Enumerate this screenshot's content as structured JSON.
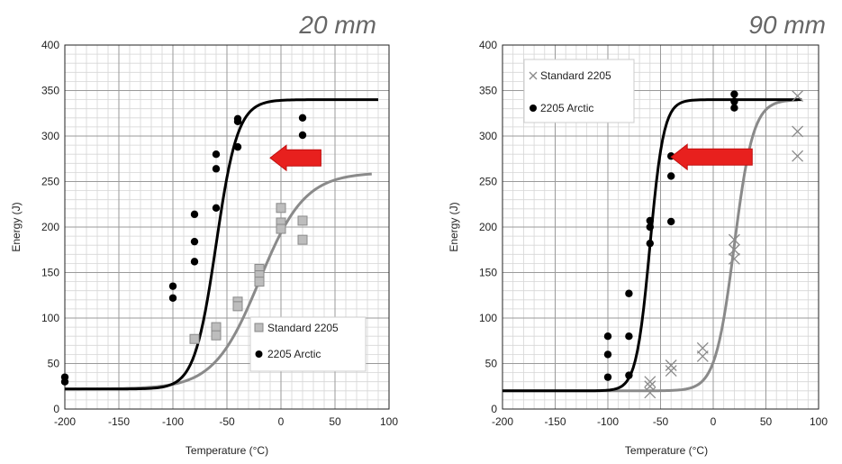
{
  "chart_data": [
    {
      "type": "scatter",
      "title": "20 mm",
      "xlabel": "Temperature (°C)",
      "ylabel": "Energy (J)",
      "xlim": [
        -200,
        100
      ],
      "ylim": [
        0,
        400
      ],
      "x_ticks": [
        "-200",
        "-150",
        "-100",
        "-50",
        "0",
        "50",
        "100"
      ],
      "y_ticks": [
        "0",
        "50",
        "100",
        "150",
        "200",
        "250",
        "300",
        "350",
        "400"
      ],
      "grid": true,
      "legend_position": "bottom-right",
      "arrow": {
        "from_x": 37,
        "to_x": -10,
        "y": 276,
        "color": "#e8201e"
      },
      "series": [
        {
          "name": "Standard 2205",
          "marker": "square",
          "color": "#bdbdbd",
          "points": [
            [
              -80,
              77
            ],
            [
              -60,
              90
            ],
            [
              -60,
              81
            ],
            [
              -40,
              118
            ],
            [
              -40,
              113
            ],
            [
              -20,
              154
            ],
            [
              -20,
              147
            ],
            [
              -20,
              140
            ],
            [
              0,
              221
            ],
            [
              0,
              205
            ],
            [
              0,
              198
            ],
            [
              20,
              207
            ],
            [
              20,
              186
            ]
          ]
        },
        {
          "name": "2205 Arctic",
          "marker": "circle",
          "color": "#000000",
          "points": [
            [
              -200,
              35
            ],
            [
              -200,
              30
            ],
            [
              -100,
              135
            ],
            [
              -100,
              122
            ],
            [
              -80,
              214
            ],
            [
              -80,
              184
            ],
            [
              -80,
              162
            ],
            [
              -60,
              280
            ],
            [
              -60,
              264
            ],
            [
              -60,
              221
            ],
            [
              -40,
              319
            ],
            [
              -40,
              316
            ],
            [
              -40,
              288
            ],
            [
              20,
              320
            ],
            [
              20,
              301
            ]
          ]
        }
      ],
      "fit_curves": [
        {
          "color": "#8a8a8a",
          "lower": 22,
          "upper": 260,
          "t0": -20,
          "c": 42,
          "x_start": -200,
          "x_end": 85
        },
        {
          "color": "#000000",
          "lower": 22,
          "upper": 340,
          "t0": -60,
          "c": 20,
          "x_start": -200,
          "x_end": 90
        }
      ]
    },
    {
      "type": "scatter",
      "title": "90 mm",
      "xlabel": "Temperature (°C)",
      "ylabel": "Energy (J)",
      "xlim": [
        -200,
        100
      ],
      "ylim": [
        0,
        400
      ],
      "x_ticks": [
        "-200",
        "-150",
        "-100",
        "-50",
        "0",
        "50",
        "100"
      ],
      "y_ticks": [
        "0",
        "50",
        "100",
        "150",
        "200",
        "250",
        "300",
        "350",
        "400"
      ],
      "grid": true,
      "legend_position": "top-left",
      "arrow": {
        "from_x": 37,
        "to_x": -40,
        "y": 277,
        "color": "#e8201e"
      },
      "series": [
        {
          "name": "Standard 2205",
          "marker": "x",
          "color": "#8a8a8a",
          "points": [
            [
              -60,
              30
            ],
            [
              -60,
              25
            ],
            [
              -60,
              18
            ],
            [
              -40,
              48
            ],
            [
              -40,
              42
            ],
            [
              -10,
              67
            ],
            [
              -10,
              58
            ],
            [
              20,
              186
            ],
            [
              20,
              175
            ],
            [
              20,
              165
            ],
            [
              80,
              344
            ],
            [
              80,
              305
            ],
            [
              80,
              278
            ]
          ]
        },
        {
          "name": "2205 Arctic",
          "marker": "circle",
          "color": "#000000",
          "points": [
            [
              -100,
              80
            ],
            [
              -100,
              60
            ],
            [
              -100,
              35
            ],
            [
              -80,
              127
            ],
            [
              -80,
              80
            ],
            [
              -80,
              37
            ],
            [
              -60,
              207
            ],
            [
              -60,
              200
            ],
            [
              -60,
              182
            ],
            [
              -40,
              278
            ],
            [
              -40,
              256
            ],
            [
              -40,
              206
            ],
            [
              20,
              346
            ],
            [
              20,
              338
            ],
            [
              20,
              331
            ]
          ]
        }
      ],
      "fit_curves": [
        {
          "color": "#8a8a8a",
          "lower": 20,
          "upper": 340,
          "t0": 20,
          "c": 18,
          "x_start": -200,
          "x_end": 80
        },
        {
          "color": "#000000",
          "lower": 20,
          "upper": 340,
          "t0": -60,
          "c": 13,
          "x_start": -200,
          "x_end": 85
        }
      ]
    }
  ]
}
